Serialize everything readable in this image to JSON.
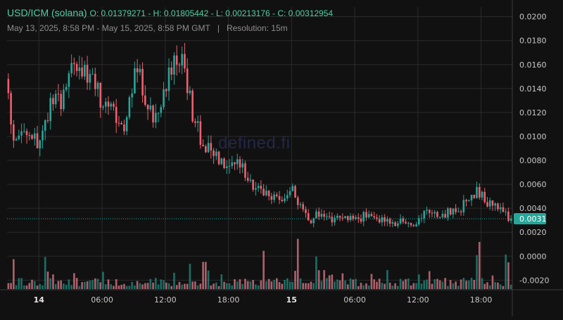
{
  "header": {
    "symbol": "USD/ICM (solana)",
    "ohlc": "O: 0.01379271 - H: 0.01805442 - L: 0.00213176 - C: 0.00312954",
    "range": "May 13, 2025, 8:58 PM - May 15, 2025, 8:58 PM GMT",
    "separator": "|",
    "resolution": "Resolution: 15m"
  },
  "watermark": "defined.fi",
  "colors": {
    "up": "#26a69a",
    "down": "#ef5f6d",
    "last_price": "#26a69a",
    "background": "#111111",
    "grid": "#2b2b2b"
  },
  "chart_data": {
    "type": "candlestick",
    "interval": "15m",
    "y_ticks": [
      "0.0200",
      "0.0180",
      "0.0160",
      "0.0140",
      "0.0120",
      "0.0100",
      "0.0080",
      "0.0060",
      "0.0040",
      "0.0020",
      "0.0000",
      "-0.0020"
    ],
    "ylim": [
      -0.0028,
      0.0208
    ],
    "x_ticks": [
      {
        "label": "14",
        "hour": 3.03,
        "bold": true
      },
      {
        "label": "06:00",
        "hour": 9.03,
        "bold": false
      },
      {
        "label": "12:00",
        "hour": 15.03,
        "bold": false
      },
      {
        "label": "18:00",
        "hour": 21.03,
        "bold": false
      },
      {
        "label": "15",
        "hour": 27.03,
        "bold": true
      },
      {
        "label": "06:00",
        "hour": 33.03,
        "bold": false
      },
      {
        "label": "12:00",
        "hour": 39.03,
        "bold": false
      },
      {
        "label": "18:00",
        "hour": 45.03,
        "bold": false
      }
    ],
    "x_range_hours": [
      0,
      48
    ],
    "last_price": 0.00312954,
    "last_price_label": "0.0031",
    "price_keypoints": [
      [
        0,
        0.0148
      ],
      [
        0.6,
        0.01
      ],
      [
        1.5,
        0.0098
      ],
      [
        2.2,
        0.0104
      ],
      [
        3.2,
        0.009
      ],
      [
        4.2,
        0.0123
      ],
      [
        5.4,
        0.0131
      ],
      [
        6.5,
        0.0163
      ],
      [
        7.6,
        0.015
      ],
      [
        8.6,
        0.014
      ],
      [
        9.4,
        0.0127
      ],
      [
        10.4,
        0.012
      ],
      [
        11.2,
        0.0104
      ],
      [
        12.0,
        0.014
      ],
      [
        12.6,
        0.0158
      ],
      [
        13.4,
        0.0124
      ],
      [
        14.4,
        0.0118
      ],
      [
        15.4,
        0.0143
      ],
      [
        16.0,
        0.017
      ],
      [
        16.8,
        0.016
      ],
      [
        17.6,
        0.0125
      ],
      [
        18.6,
        0.0098
      ],
      [
        19.6,
        0.0088
      ],
      [
        20.6,
        0.008
      ],
      [
        21.6,
        0.0078
      ],
      [
        22.6,
        0.0074
      ],
      [
        23.6,
        0.0058
      ],
      [
        24.6,
        0.005
      ],
      [
        26.4,
        0.005
      ],
      [
        27.3,
        0.0056
      ],
      [
        28.0,
        0.004
      ],
      [
        28.8,
        0.003
      ],
      [
        29.8,
        0.0035
      ],
      [
        30.8,
        0.0031
      ],
      [
        32.8,
        0.003
      ],
      [
        34.0,
        0.0033
      ],
      [
        35.0,
        0.0032
      ],
      [
        36.0,
        0.003
      ],
      [
        38.0,
        0.0028
      ],
      [
        39.0,
        0.0028
      ],
      [
        39.8,
        0.0036
      ],
      [
        41.0,
        0.0034
      ],
      [
        42.0,
        0.0037
      ],
      [
        43.0,
        0.0036
      ],
      [
        44.0,
        0.005
      ],
      [
        44.8,
        0.0054
      ],
      [
        45.8,
        0.0043
      ],
      [
        47.0,
        0.004
      ],
      [
        48.0,
        0.0031
      ]
    ],
    "volume_spike_hours": [
      0.5,
      3.5,
      17.2,
      18.6,
      24.3,
      27.5,
      29.2,
      44.6,
      47.4
    ]
  }
}
